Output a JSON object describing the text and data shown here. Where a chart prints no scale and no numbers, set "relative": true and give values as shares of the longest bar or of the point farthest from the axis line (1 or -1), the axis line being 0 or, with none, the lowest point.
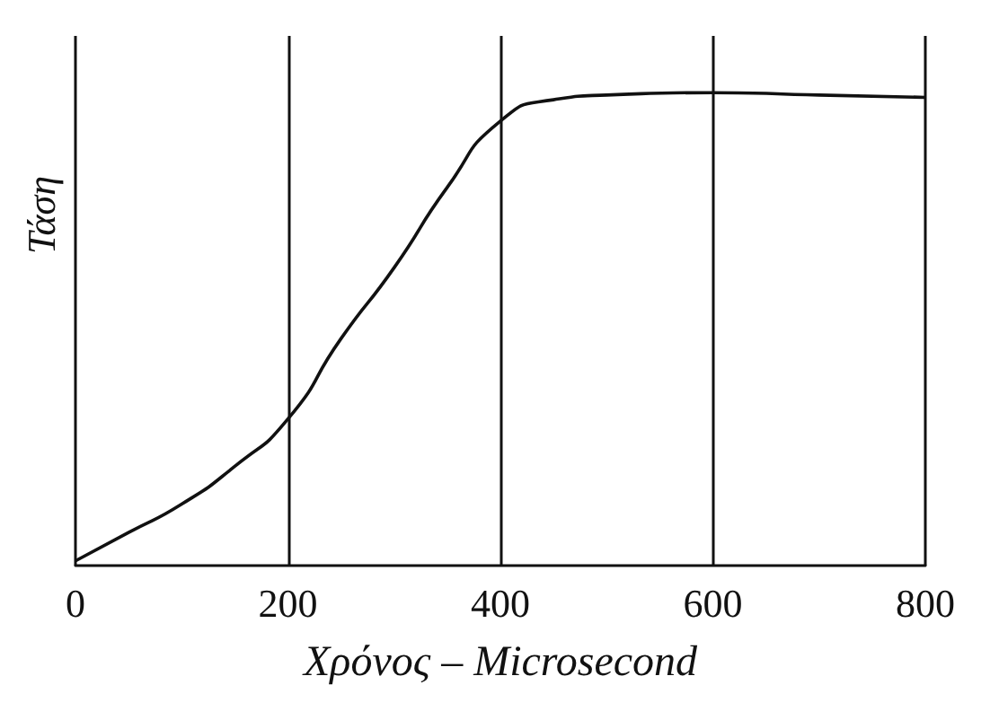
{
  "chart_data": {
    "type": "line",
    "xlabel": "Χρόνος – Microsecond",
    "ylabel": "Τάση",
    "relative": true,
    "x": [
      0,
      50,
      100,
      150,
      200,
      250,
      300,
      350,
      400,
      450,
      500,
      600,
      700,
      800
    ],
    "series": [
      {
        "color": "#111111",
        "values": [
          0.01,
          0.07,
          0.13,
          0.21,
          0.31,
          0.48,
          0.63,
          0.8,
          0.94,
          0.985,
          0.995,
          1,
          0.995,
          0.99
        ]
      }
    ],
    "xlim": [
      0,
      800
    ],
    "xticks": [
      0,
      200,
      400,
      600,
      800
    ],
    "grid": "x",
    "marker": "none",
    "line_style": "solid"
  }
}
